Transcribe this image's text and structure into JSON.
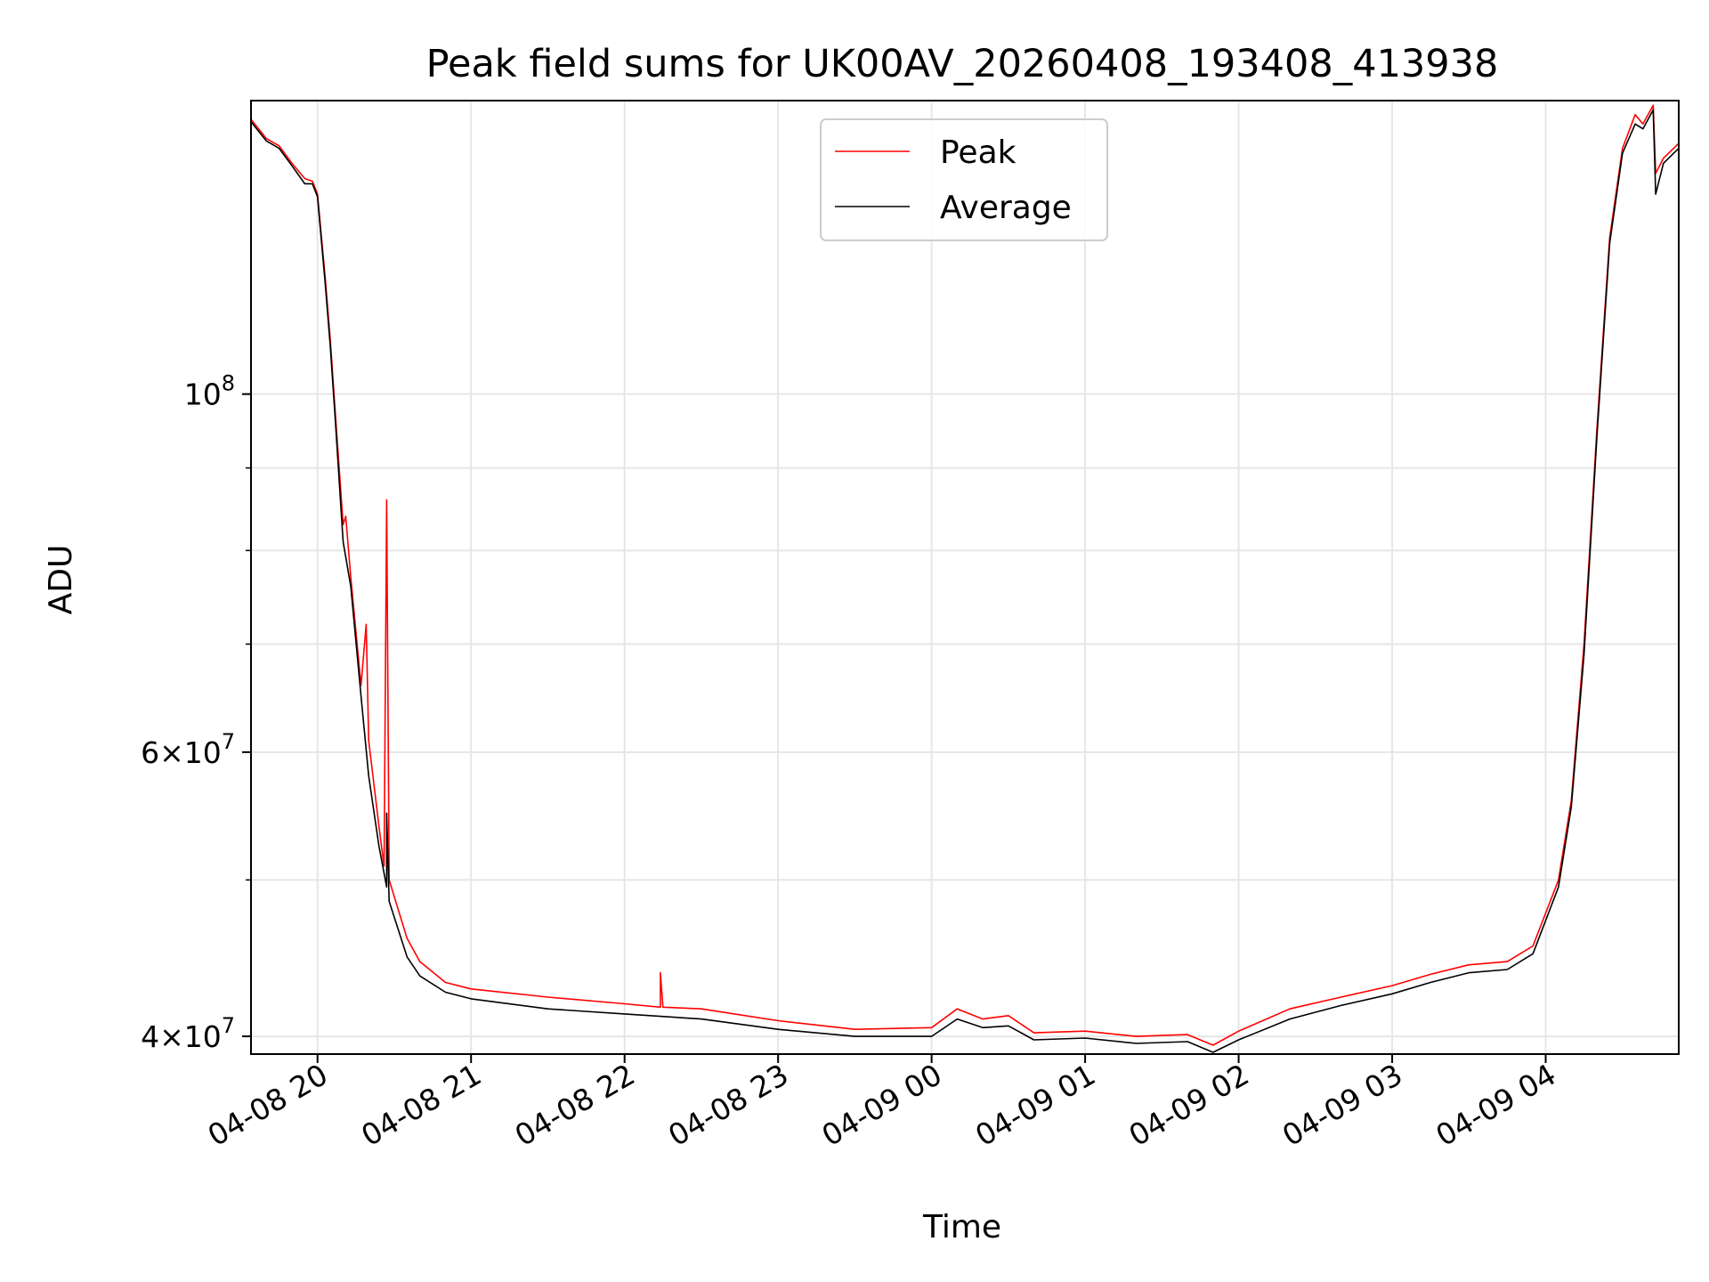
{
  "chart_data": {
    "type": "line",
    "title": "Peak field sums for UK00AV_20260408_193408_413938",
    "xlabel": "Time",
    "ylabel": "ADU",
    "yscale": "log",
    "xlim": [
      "2026-04-08T19:34",
      "2026-04-09T04:52"
    ],
    "ylim": [
      39000000,
      152000000
    ],
    "grid": true,
    "legend": {
      "placement": "top-center",
      "entries": [
        "Peak",
        "Average"
      ]
    },
    "x_ticks": [
      {
        "t": "2026-04-08T20:00",
        "label": "04-08 20"
      },
      {
        "t": "2026-04-08T21:00",
        "label": "04-08 21"
      },
      {
        "t": "2026-04-08T22:00",
        "label": "04-08 22"
      },
      {
        "t": "2026-04-08T23:00",
        "label": "04-08 23"
      },
      {
        "t": "2026-04-09T00:00",
        "label": "04-09 00"
      },
      {
        "t": "2026-04-09T01:00",
        "label": "04-09 01"
      },
      {
        "t": "2026-04-09T02:00",
        "label": "04-09 02"
      },
      {
        "t": "2026-04-09T03:00",
        "label": "04-09 03"
      },
      {
        "t": "2026-04-09T04:00",
        "label": "04-09 04"
      }
    ],
    "y_ticks": [
      {
        "value": 100000000,
        "label": "10^8"
      },
      {
        "value": 60000000,
        "label": "6×10^7"
      },
      {
        "value": 40000000,
        "label": "4×10^7"
      }
    ],
    "y_minor_ticks": [
      50000000,
      70000000,
      80000000,
      90000000
    ],
    "series": [
      {
        "name": "Peak",
        "color": "#ff0000",
        "points": [
          [
            "2026-04-08T19:34",
            148000000
          ],
          [
            "2026-04-08T19:40",
            144000000
          ],
          [
            "2026-04-08T19:45",
            142500000
          ],
          [
            "2026-04-08T19:50",
            139000000
          ],
          [
            "2026-04-08T19:55",
            136000000
          ],
          [
            "2026-04-08T19:58",
            135500000
          ],
          [
            "2026-04-08T20:00",
            133000000
          ],
          [
            "2026-04-08T20:03",
            118000000
          ],
          [
            "2026-04-08T20:05",
            108000000
          ],
          [
            "2026-04-08T20:07",
            97000000
          ],
          [
            "2026-04-08T20:10",
            83000000
          ],
          [
            "2026-04-08T20:11",
            84000000
          ],
          [
            "2026-04-08T20:13",
            77000000
          ],
          [
            "2026-04-08T20:17",
            66000000
          ],
          [
            "2026-04-08T20:19",
            72000000
          ],
          [
            "2026-04-08T20:20",
            61000000
          ],
          [
            "2026-04-08T20:24",
            54000000
          ],
          [
            "2026-04-08T20:26",
            51000000
          ],
          [
            "2026-04-08T20:27",
            86000000
          ],
          [
            "2026-04-08T20:28",
            50000000
          ],
          [
            "2026-04-08T20:35",
            46000000
          ],
          [
            "2026-04-08T20:40",
            44500000
          ],
          [
            "2026-04-08T20:50",
            43200000
          ],
          [
            "2026-04-08T21:00",
            42800000
          ],
          [
            "2026-04-08T21:30",
            42300000
          ],
          [
            "2026-04-08T22:00",
            41900000
          ],
          [
            "2026-04-08T22:14",
            41700000
          ],
          [
            "2026-04-08T22:14",
            43800000
          ],
          [
            "2026-04-08T22:15",
            41700000
          ],
          [
            "2026-04-08T22:30",
            41600000
          ],
          [
            "2026-04-08T23:00",
            40900000
          ],
          [
            "2026-04-08T23:30",
            40400000
          ],
          [
            "2026-04-09T00:00",
            40500000
          ],
          [
            "2026-04-09T00:10",
            41600000
          ],
          [
            "2026-04-09T00:20",
            41000000
          ],
          [
            "2026-04-09T00:30",
            41200000
          ],
          [
            "2026-04-09T00:40",
            40200000
          ],
          [
            "2026-04-09T01:00",
            40300000
          ],
          [
            "2026-04-09T01:20",
            40000000
          ],
          [
            "2026-04-09T01:40",
            40100000
          ],
          [
            "2026-04-09T01:50",
            39500000
          ],
          [
            "2026-04-09T02:00",
            40300000
          ],
          [
            "2026-04-09T02:20",
            41600000
          ],
          [
            "2026-04-09T02:40",
            42300000
          ],
          [
            "2026-04-09T03:00",
            43000000
          ],
          [
            "2026-04-09T03:15",
            43700000
          ],
          [
            "2026-04-09T03:30",
            44300000
          ],
          [
            "2026-04-09T03:45",
            44500000
          ],
          [
            "2026-04-09T03:55",
            45500000
          ],
          [
            "2026-04-09T04:05",
            50000000
          ],
          [
            "2026-04-09T04:10",
            56000000
          ],
          [
            "2026-04-09T04:15",
            70000000
          ],
          [
            "2026-04-09T04:20",
            95000000
          ],
          [
            "2026-04-09T04:25",
            125000000
          ],
          [
            "2026-04-09T04:30",
            142000000
          ],
          [
            "2026-04-09T04:35",
            149000000
          ],
          [
            "2026-04-09T04:38",
            147000000
          ],
          [
            "2026-04-09T04:42",
            151000000
          ],
          [
            "2026-04-09T04:43",
            137000000
          ],
          [
            "2026-04-09T04:46",
            140000000
          ],
          [
            "2026-04-09T04:52",
            143000000
          ]
        ]
      },
      {
        "name": "Average",
        "color": "#000000",
        "points": [
          [
            "2026-04-08T19:34",
            147500000
          ],
          [
            "2026-04-08T19:40",
            143500000
          ],
          [
            "2026-04-08T19:45",
            142000000
          ],
          [
            "2026-04-08T19:50",
            138500000
          ],
          [
            "2026-04-08T19:55",
            135000000
          ],
          [
            "2026-04-08T19:58",
            135000000
          ],
          [
            "2026-04-08T20:00",
            132500000
          ],
          [
            "2026-04-08T20:03",
            117000000
          ],
          [
            "2026-04-08T20:05",
            107000000
          ],
          [
            "2026-04-08T20:07",
            96000000
          ],
          [
            "2026-04-08T20:10",
            81000000
          ],
          [
            "2026-04-08T20:13",
            76000000
          ],
          [
            "2026-04-08T20:17",
            65000000
          ],
          [
            "2026-04-08T20:20",
            58000000
          ],
          [
            "2026-04-08T20:24",
            52500000
          ],
          [
            "2026-04-08T20:27",
            49500000
          ],
          [
            "2026-04-08T20:27",
            55000000
          ],
          [
            "2026-04-08T20:28",
            48500000
          ],
          [
            "2026-04-08T20:35",
            44800000
          ],
          [
            "2026-04-08T20:40",
            43600000
          ],
          [
            "2026-04-08T20:50",
            42600000
          ],
          [
            "2026-04-08T21:00",
            42200000
          ],
          [
            "2026-04-08T21:30",
            41600000
          ],
          [
            "2026-04-08T22:00",
            41300000
          ],
          [
            "2026-04-08T22:30",
            41000000
          ],
          [
            "2026-04-08T23:00",
            40400000
          ],
          [
            "2026-04-08T23:30",
            40000000
          ],
          [
            "2026-04-09T00:00",
            40000000
          ],
          [
            "2026-04-09T00:10",
            41000000
          ],
          [
            "2026-04-09T00:20",
            40500000
          ],
          [
            "2026-04-09T00:30",
            40600000
          ],
          [
            "2026-04-09T00:40",
            39800000
          ],
          [
            "2026-04-09T01:00",
            39900000
          ],
          [
            "2026-04-09T01:20",
            39600000
          ],
          [
            "2026-04-09T01:40",
            39700000
          ],
          [
            "2026-04-09T01:50",
            39100000
          ],
          [
            "2026-04-09T02:00",
            39800000
          ],
          [
            "2026-04-09T02:20",
            41000000
          ],
          [
            "2026-04-09T02:40",
            41800000
          ],
          [
            "2026-04-09T03:00",
            42500000
          ],
          [
            "2026-04-09T03:15",
            43200000
          ],
          [
            "2026-04-09T03:30",
            43800000
          ],
          [
            "2026-04-09T03:45",
            44000000
          ],
          [
            "2026-04-09T03:55",
            45000000
          ],
          [
            "2026-04-09T04:05",
            49500000
          ],
          [
            "2026-04-09T04:10",
            55500000
          ],
          [
            "2026-04-09T04:15",
            69000000
          ],
          [
            "2026-04-09T04:20",
            94000000
          ],
          [
            "2026-04-09T04:25",
            124000000
          ],
          [
            "2026-04-09T04:30",
            141000000
          ],
          [
            "2026-04-09T04:35",
            147000000
          ],
          [
            "2026-04-09T04:38",
            146000000
          ],
          [
            "2026-04-09T04:42",
            150000000
          ],
          [
            "2026-04-09T04:43",
            133000000
          ],
          [
            "2026-04-09T04:46",
            139000000
          ],
          [
            "2026-04-09T04:52",
            142000000
          ]
        ]
      }
    ]
  }
}
